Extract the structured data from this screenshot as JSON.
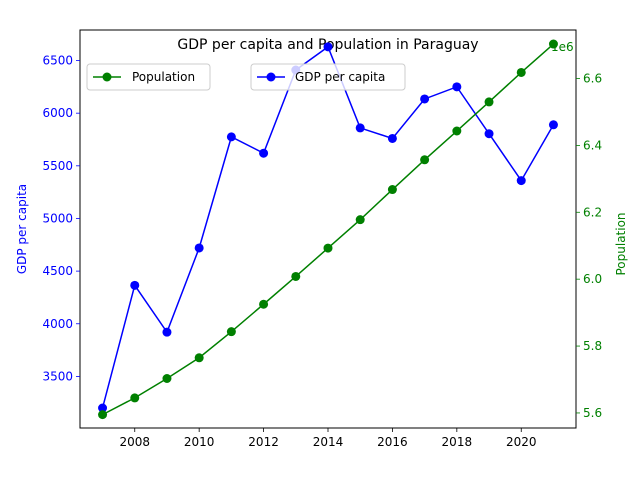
{
  "chart_data": {
    "type": "line",
    "title": "GDP per capita and Population in Paraguay",
    "x": [
      2007,
      2008,
      2009,
      2010,
      2011,
      2012,
      2013,
      2014,
      2015,
      2016,
      2017,
      2018,
      2019,
      2020,
      2021
    ],
    "xlim": [
      2006.3,
      2021.7
    ],
    "xticks": [
      "2008",
      "2010",
      "2012",
      "2014",
      "2016",
      "2018",
      "2020"
    ],
    "left_axis": {
      "ylabel": "GDP per capita",
      "ylim": [
        3010,
        6790
      ],
      "ticks": [
        "3500",
        "4000",
        "4500",
        "5000",
        "5500",
        "6000",
        "6500"
      ],
      "color": "#0000ff"
    },
    "right_axis": {
      "ylabel": "Population",
      "offset_label": "1e6",
      "ylim": [
        5.555,
        6.745
      ],
      "ticks": [
        "5.6",
        "5.8",
        "6.0",
        "6.2",
        "6.4",
        "6.6"
      ],
      "color": "#008000"
    },
    "series": [
      {
        "name": "GDP per capita",
        "axis": "left",
        "color": "#0000ff",
        "values": [
          3200,
          4365,
          3920,
          4720,
          5775,
          5620,
          6410,
          6630,
          5860,
          5760,
          6135,
          6250,
          5805,
          5360,
          5890
        ]
      },
      {
        "name": "Population",
        "axis": "right",
        "color": "#008000",
        "values": [
          5.595,
          5.645,
          5.703,
          5.765,
          5.843,
          5.925,
          6.008,
          6.093,
          6.178,
          6.268,
          6.357,
          6.443,
          6.53,
          6.618,
          6.703
        ]
      }
    ],
    "grid": false,
    "legend": [
      {
        "label": "Population",
        "placement": "upper-left"
      },
      {
        "label": "GDP per capita",
        "placement": "upper-center"
      }
    ]
  }
}
